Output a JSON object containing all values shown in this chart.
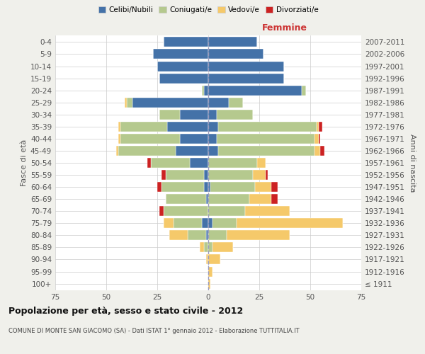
{
  "age_groups": [
    "100+",
    "95-99",
    "90-94",
    "85-89",
    "80-84",
    "75-79",
    "70-74",
    "65-69",
    "60-64",
    "55-59",
    "50-54",
    "45-49",
    "40-44",
    "35-39",
    "30-34",
    "25-29",
    "20-24",
    "15-19",
    "10-14",
    "5-9",
    "0-4"
  ],
  "birth_years": [
    "≤ 1911",
    "1912-1916",
    "1917-1921",
    "1922-1926",
    "1927-1931",
    "1932-1936",
    "1937-1941",
    "1942-1946",
    "1947-1951",
    "1952-1956",
    "1957-1961",
    "1962-1966",
    "1967-1971",
    "1972-1976",
    "1977-1981",
    "1982-1986",
    "1987-1991",
    "1992-1996",
    "1997-2001",
    "2002-2006",
    "2007-2011"
  ],
  "male": {
    "celibi": [
      0,
      0,
      0,
      0,
      1,
      3,
      0,
      1,
      2,
      2,
      9,
      16,
      14,
      20,
      14,
      37,
      2,
      24,
      25,
      27,
      22
    ],
    "coniugati": [
      0,
      0,
      0,
      2,
      9,
      14,
      22,
      20,
      21,
      19,
      19,
      28,
      29,
      23,
      10,
      3,
      1,
      0,
      0,
      0,
      0
    ],
    "vedovi": [
      0,
      0,
      1,
      2,
      9,
      5,
      0,
      0,
      0,
      0,
      0,
      1,
      1,
      1,
      0,
      1,
      0,
      0,
      0,
      0,
      0
    ],
    "divorziati": [
      0,
      0,
      0,
      0,
      0,
      0,
      2,
      0,
      2,
      2,
      2,
      0,
      0,
      0,
      0,
      0,
      0,
      0,
      0,
      0,
      0
    ]
  },
  "female": {
    "nubili": [
      0,
      0,
      0,
      0,
      0,
      2,
      0,
      0,
      1,
      0,
      0,
      5,
      4,
      5,
      4,
      10,
      46,
      37,
      37,
      27,
      24
    ],
    "coniugate": [
      0,
      0,
      0,
      2,
      9,
      12,
      18,
      20,
      22,
      22,
      24,
      47,
      48,
      48,
      18,
      7,
      2,
      0,
      0,
      0,
      0
    ],
    "vedove": [
      1,
      2,
      6,
      10,
      31,
      52,
      22,
      11,
      8,
      6,
      4,
      3,
      2,
      1,
      0,
      0,
      0,
      0,
      0,
      0,
      0
    ],
    "divorziate": [
      0,
      0,
      0,
      0,
      0,
      0,
      0,
      3,
      3,
      1,
      0,
      2,
      1,
      2,
      0,
      0,
      0,
      0,
      0,
      0,
      0
    ]
  },
  "color_celibi": "#4472a8",
  "color_coniugati": "#b5c98e",
  "color_vedovi": "#f5c96a",
  "color_divorziati": "#cc2222",
  "xlim": 75,
  "title": "Popolazione per età, sesso e stato civile - 2012",
  "subtitle": "COMUNE DI MONTE SAN GIACOMO (SA) - Dati ISTAT 1° gennaio 2012 - Elaborazione TUTTITALIA.IT",
  "ylabel": "Fasce di età",
  "ylabel_right": "Anni di nascita",
  "xlabel_right": "Femmine",
  "bg_color": "#f0f0eb",
  "plot_bg_color": "#ffffff"
}
